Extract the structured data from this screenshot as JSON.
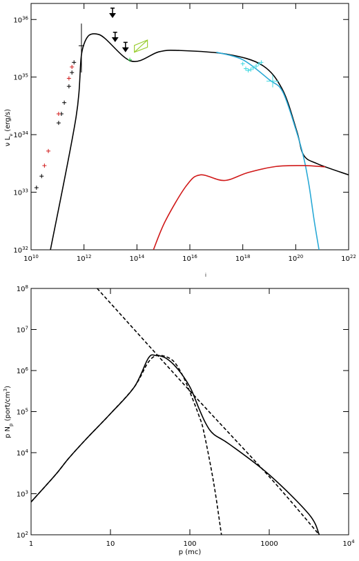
{
  "chart_data": [
    {
      "type": "line",
      "xlog": true,
      "ylog": true,
      "ylabel": "ν L_ν (erg/s)",
      "annotation": "i",
      "xlim": [
        10000000000.0,
        1e+22
      ],
      "ylim": [
        1e+32,
        1.9e+36
      ],
      "xticks": [
        {
          "value": 10000000000.0,
          "label": "10^10"
        },
        {
          "value": 1000000000000.0,
          "label": "10^12"
        },
        {
          "value": 100000000000000.0,
          "label": "10^14"
        },
        {
          "value": 1e+16,
          "label": "10^16"
        },
        {
          "value": 1e+18,
          "label": "10^18"
        },
        {
          "value": 1e+20,
          "label": "10^20"
        },
        {
          "value": 1e+22,
          "label": "10^22"
        }
      ],
      "yticks": [
        {
          "value": 1e+32,
          "label": "10^32"
        },
        {
          "value": 1e+33,
          "label": "10^33"
        },
        {
          "value": 1e+34,
          "label": "10^34"
        },
        {
          "value": 1e+35,
          "label": "10^35"
        },
        {
          "value": 1e+36,
          "label": "10^36"
        }
      ],
      "series": [
        {
          "mark": "line",
          "color": "#000000",
          "x": [
            54000000000.0,
            500000000000.0,
            900000000000.0,
            3600000000000.0,
            60000000000000.0,
            680000000000000.0,
            4000000000000000.0,
            2.5e+17,
            5.5e+18,
            3.2e+19,
            1.1e+20,
            2e+20,
            6.8e+20,
            1e+22
          ],
          "values": [
            1e+32,
            2e+34,
            3.2e+35,
            5.5e+35,
            1.9e+35,
            2.75e+35,
            2.9e+35,
            2.5e+35,
            1.6e+35,
            6e+34,
            1.15e+34,
            4.4e+33,
            3.1e+33,
            2e+33
          ]
        },
        {
          "mark": "line",
          "color": "#29a9d6",
          "x": [
            1e+17,
            1e+18,
            1e+19,
            3.2e+19,
            1e+20,
            2e+20,
            3.2e+20,
            5e+20,
            7.6e+20
          ],
          "values": [
            2.7e+35,
            2e+35,
            9e+34,
            5.6e+34,
            1.25e+34,
            4e+33,
            1.3e+33,
            3.2e+32,
            1e+32
          ]
        },
        {
          "mark": "line",
          "color": "#d01818",
          "x": [
            420000000000000.0,
            1200000000000000.0,
            7400000000000000.0,
            2.5e+16,
            2e+17,
            1.6e+18,
            1.8e+19,
            2e+20,
            1.3e+21
          ],
          "values": [
            1e+32,
            3.2e+32,
            1.3e+33,
            2e+33,
            1.6e+33,
            2.2e+33,
            2.8e+33,
            2.9e+33,
            2.75e+33
          ]
        },
        {
          "mark": "plus",
          "color": "#000000",
          "x": [
            16000000000.0,
            25000000000.0,
            110000000000.0,
            140000000000.0,
            180000000000.0,
            270000000000.0,
            350000000000.0,
            420000000000.0
          ],
          "values": [
            1.2e+33,
            1.9e+33,
            1.6e+34,
            2.3e+34,
            3.6e+34,
            6.9e+34,
            1.2e+35,
            1.8e+35
          ]
        },
        {
          "mark": "plus",
          "color": "#d01818",
          "x": [
            32000000000.0,
            45000000000.0,
            110000000000.0,
            270000000000.0,
            350000000000.0
          ],
          "values": [
            2.9e+33,
            5.2e+33,
            2.3e+34,
            9.5e+34,
            1.5e+35
          ]
        },
        {
          "mark": "errorbar",
          "color": "#000000",
          "x": [
            800000000000.0
          ],
          "values": [
            3.5e+35
          ],
          "ylow": [
            1.2e+35
          ],
          "yhigh": [
            8.5e+35
          ]
        },
        {
          "mark": "arrow",
          "color": "#000000",
          "x": [
            12000000000000.0,
            15000000000000.0,
            37000000000000.0
          ],
          "values": [
            1.1e+36,
            4.2e+35,
            2.8e+35
          ]
        },
        {
          "mark": "plus",
          "color": "#2fd24a",
          "x": [
            54000000000000.0
          ],
          "values": [
            2e+35
          ]
        },
        {
          "mark": "bowtie",
          "color": "#9acd32",
          "x": [
            80000000000000.0,
            250000000000000.0
          ],
          "ylow": [
            2.7e+35,
            3.3e+35
          ],
          "yhigh": [
            3.55e+35,
            4.4e+35
          ]
        },
        {
          "mark": "plus",
          "color": "#3fd8e0",
          "x": [
            1e+18,
            1.3e+18,
            1.6e+18,
            2e+18,
            2.5e+18,
            3.2e+18,
            4e+18,
            5e+18
          ],
          "values": [
            1.7e+35,
            1.4e+35,
            1.3e+35,
            1.35e+35,
            1.45e+35,
            1.55e+35,
            1.7e+35,
            1.8e+35
          ]
        },
        {
          "mark": "bigplus",
          "color": "#3fd8e0",
          "x": [
            1.35e+19
          ],
          "values": [
            8.5e+34
          ]
        }
      ]
    },
    {
      "type": "line",
      "xlog": true,
      "ylog": true,
      "xlabel": "p  (mc)",
      "ylabel": "p N_p  (port/cm^3)",
      "xlim": [
        1,
        10000
      ],
      "ylim": [
        100,
        100000000.0
      ],
      "xticks": [
        1,
        10,
        100,
        1000,
        {
          "value": 10000,
          "label": "10^4"
        }
      ],
      "yticks": [
        {
          "value": 100,
          "label": "10^2"
        },
        {
          "value": 1000,
          "label": "10^3"
        },
        {
          "value": 10000,
          "label": "10^4"
        },
        {
          "value": 100000,
          "label": "10^5"
        },
        {
          "value": 1000000,
          "label": "10^6"
        },
        {
          "value": 10000000,
          "label": "10^7"
        },
        {
          "value": 100000000,
          "label": "10^8"
        }
      ],
      "series": [
        {
          "mark": "line",
          "color": "#000000",
          "x": [
            1,
            2,
            3,
            5,
            10,
            20,
            30,
            37,
            50,
            70,
            100,
            130,
            160,
            200,
            316,
            1000,
            3162,
            4266
          ],
          "values": [
            630,
            2800,
            7400,
            22000,
            89000,
            400000,
            2000000,
            2340000,
            2000000,
            1100000,
            400000,
            120000,
            50000,
            28000,
            16000,
            2900,
            316,
            100
          ]
        },
        {
          "mark": "dashed",
          "color": "#000000",
          "x": [
            1,
            2,
            3,
            5,
            10,
            20,
            30,
            40,
            60,
            80,
            100,
            130,
            150,
            200,
            250
          ],
          "values": [
            630,
            2800,
            7400,
            22000,
            89000,
            400000,
            1600000,
            2340000,
            1800000,
            800000,
            300000,
            80000,
            32000,
            1800,
            100
          ]
        },
        {
          "mark": "dashed",
          "color": "#000000",
          "x": [
            6.8,
            100,
            1000,
            4266
          ],
          "values": [
            100000000,
            320000,
            2600,
            100
          ]
        }
      ]
    }
  ]
}
